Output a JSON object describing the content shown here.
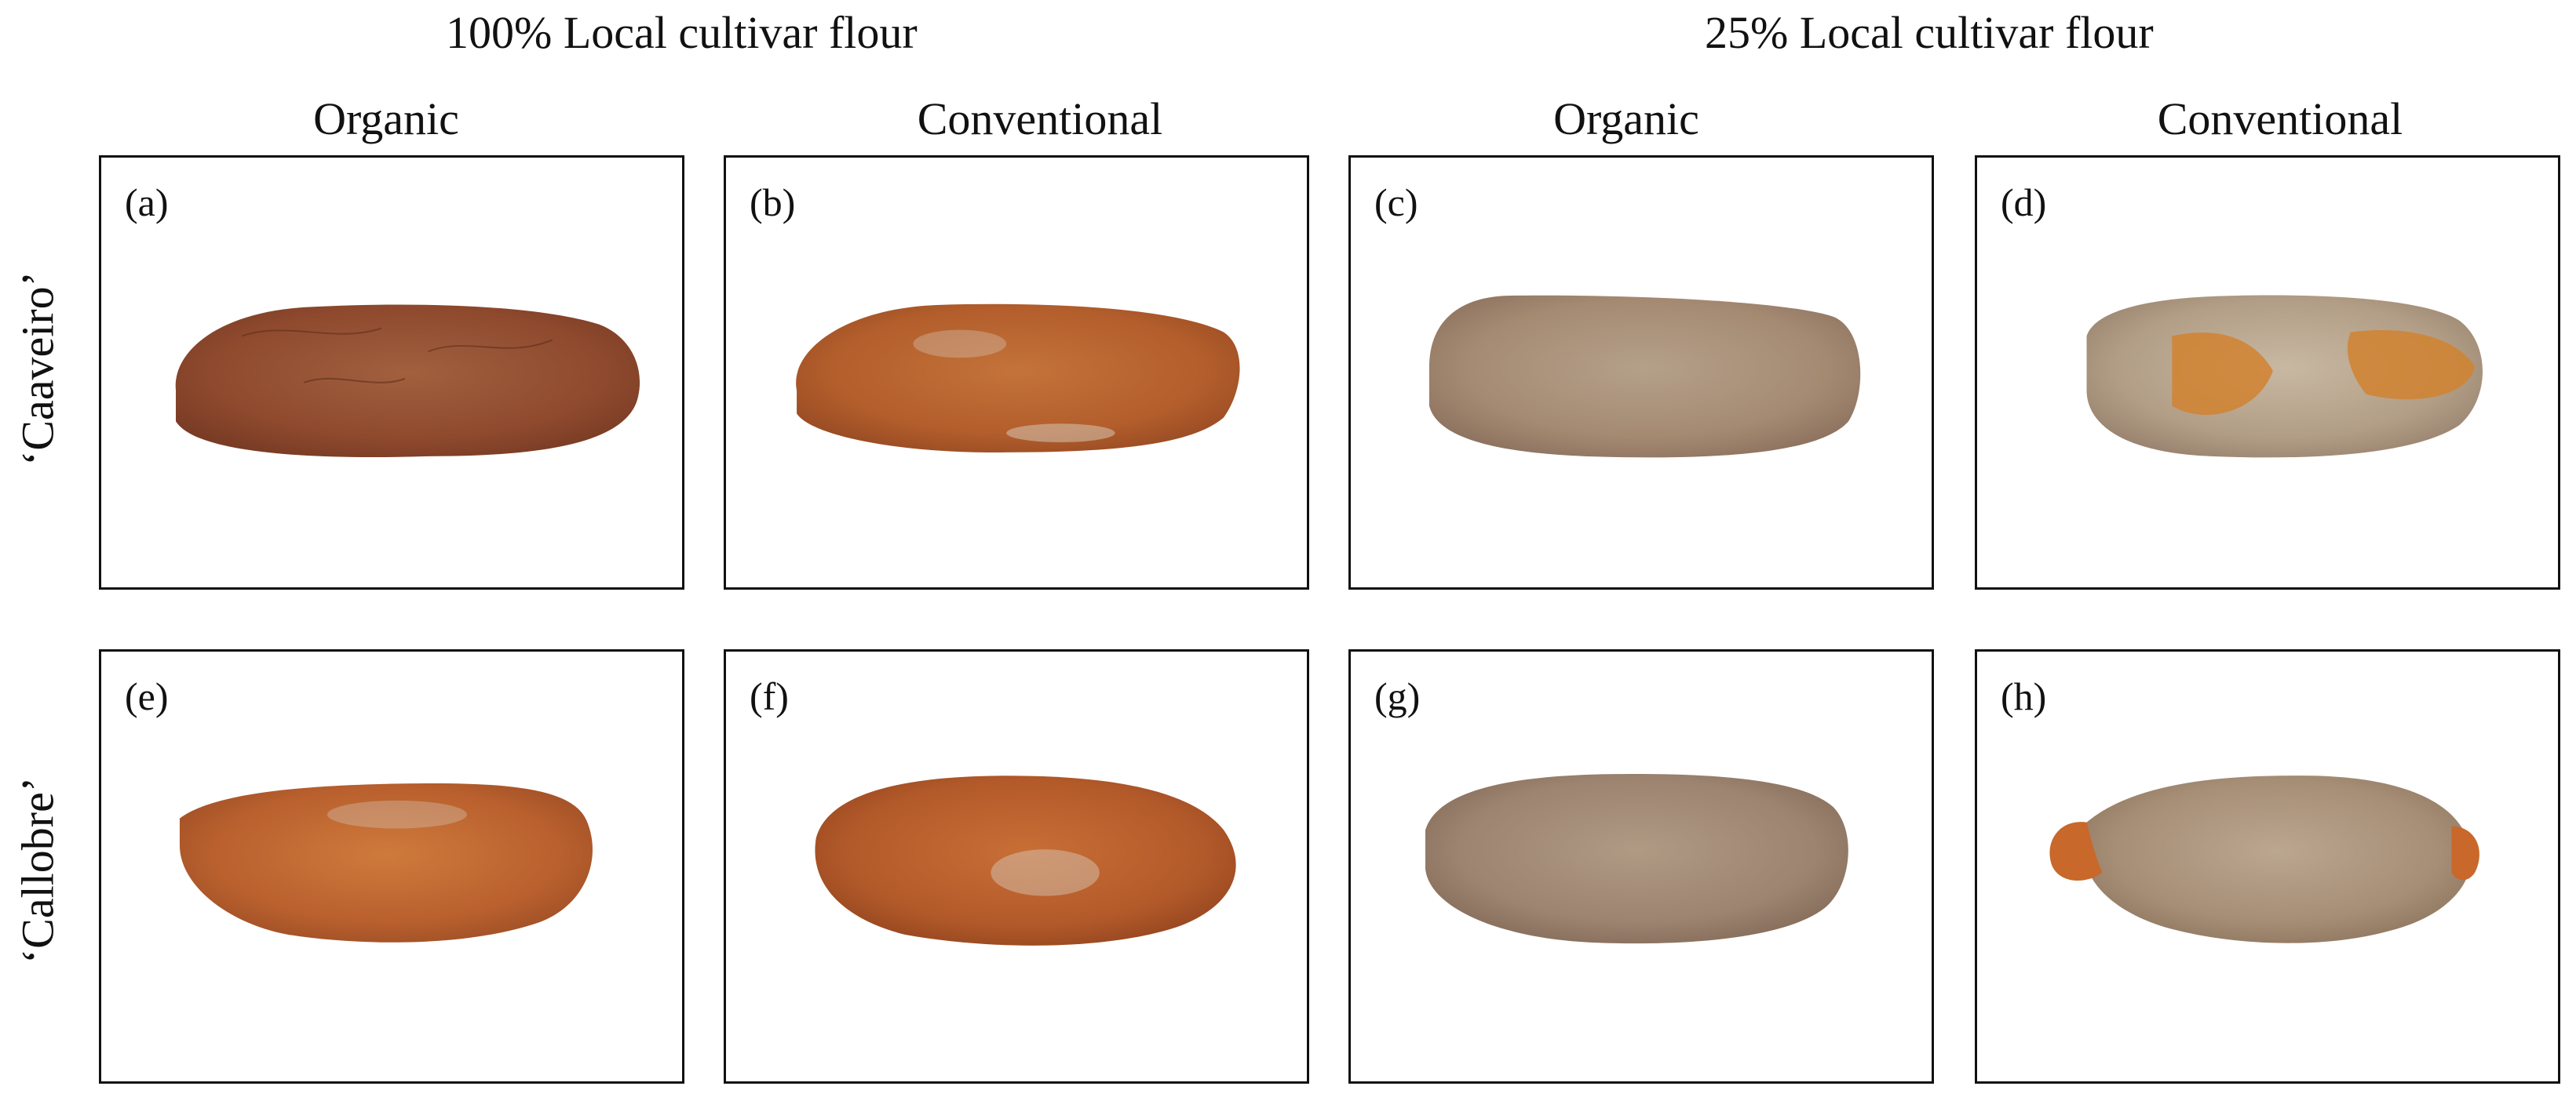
{
  "group_titles": [
    "100% Local cultivar flour",
    "25% Local cultivar flour"
  ],
  "column_titles": [
    "Organic",
    "Conventional",
    "Organic",
    "Conventional"
  ],
  "row_labels": [
    "‘Caaveiro’",
    "‘Callobre’"
  ],
  "panels": [
    {
      "letter": "(a)",
      "cultivar": "‘Caaveiro’",
      "flour": "100% Local cultivar flour",
      "farming": "Organic"
    },
    {
      "letter": "(b)",
      "cultivar": "‘Caaveiro’",
      "flour": "100% Local cultivar flour",
      "farming": "Conventional"
    },
    {
      "letter": "(c)",
      "cultivar": "‘Caaveiro’",
      "flour": "25% Local cultivar flour",
      "farming": "Organic"
    },
    {
      "letter": "(d)",
      "cultivar": "‘Caaveiro’",
      "flour": "25% Local cultivar flour",
      "farming": "Conventional"
    },
    {
      "letter": "(e)",
      "cultivar": "‘Callobre’",
      "flour": "100% Local cultivar flour",
      "farming": "Organic"
    },
    {
      "letter": "(f)",
      "cultivar": "‘Callobre’",
      "flour": "100% Local cultivar flour",
      "farming": "Conventional"
    },
    {
      "letter": "(g)",
      "cultivar": "‘Callobre’",
      "flour": "25% Local cultivar flour",
      "farming": "Organic"
    },
    {
      "letter": "(h)",
      "cultivar": "‘Callobre’",
      "flour": "25% Local cultivar flour",
      "farming": "Conventional"
    }
  ],
  "colors": {
    "crust_red_brown": "#9a4a2c",
    "crust_orange": "#c8682a",
    "crust_pale": "#a99a88",
    "flour_dust": "#d8cfc2"
  }
}
